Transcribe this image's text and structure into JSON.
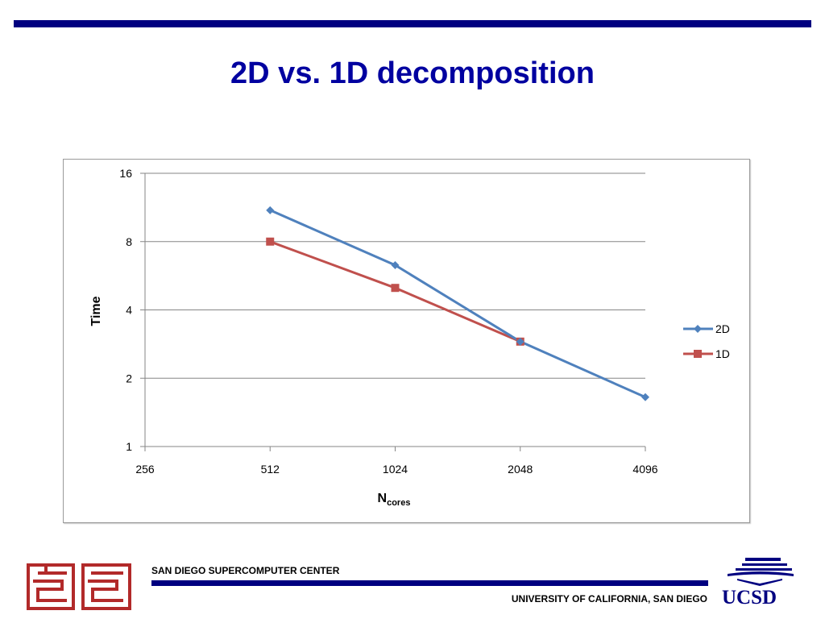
{
  "slide": {
    "title": "2D vs. 1D decomposition"
  },
  "footer": {
    "left_org": "SAN DIEGO SUPERCOMPUTER CENTER",
    "right_org": "UNIVERSITY OF CALIFORNIA, SAN DIEGO",
    "logo_text": "UCSD",
    "rule_color": "#000080"
  },
  "chart_data": {
    "type": "line",
    "xlabel_main": "N",
    "xlabel_sub": "cores",
    "ylabel": "Time",
    "x_scale": "log2",
    "y_scale": "log2",
    "x_ticks": [
      256,
      512,
      1024,
      2048,
      4096
    ],
    "y_ticks": [
      1,
      2,
      4,
      8,
      16
    ],
    "xlim": [
      256,
      4096
    ],
    "ylim": [
      1,
      16
    ],
    "grid": "horizontal",
    "legend_position": "right",
    "series": [
      {
        "name": "2D",
        "color": "#4f81bd",
        "marker": "diamond",
        "points": [
          [
            512,
            11.0
          ],
          [
            1024,
            6.3
          ],
          [
            2048,
            2.9
          ],
          [
            4096,
            1.65
          ]
        ]
      },
      {
        "name": "1D",
        "color": "#c0504d",
        "marker": "square",
        "points": [
          [
            512,
            8.0
          ],
          [
            1024,
            5.0
          ],
          [
            2048,
            2.9
          ]
        ]
      }
    ]
  }
}
